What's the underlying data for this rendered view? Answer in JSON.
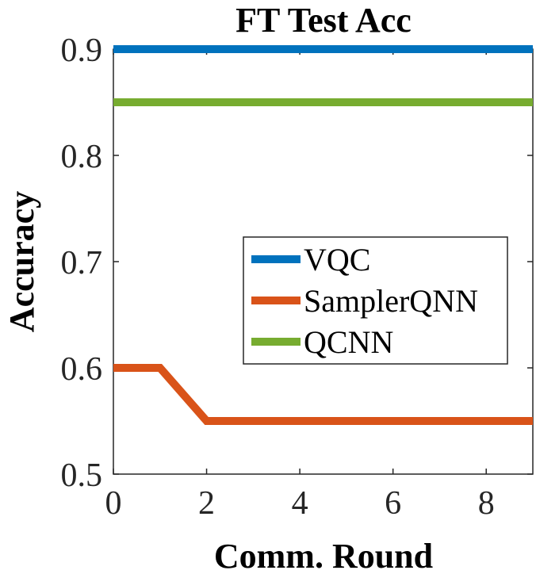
{
  "chart_data": {
    "type": "line",
    "title": "FT Test Acc",
    "xlabel": "Comm. Round",
    "ylabel": "Accuracy",
    "xlim": [
      0,
      9
    ],
    "ylim": [
      0.5,
      0.9
    ],
    "xticks": [
      0,
      2,
      4,
      6,
      8
    ],
    "xtick_labels": [
      "0",
      "2",
      "4",
      "6",
      "8"
    ],
    "yticks": [
      0.5,
      0.6,
      0.7,
      0.8,
      0.9
    ],
    "ytick_labels": [
      "0.5",
      "0.6",
      "0.7",
      "0.8",
      "0.9"
    ],
    "x": [
      0,
      1,
      2,
      3,
      4,
      5,
      6,
      7,
      8,
      9
    ],
    "series": [
      {
        "name": "VQC",
        "color": "#0072bd",
        "values": [
          0.9,
          0.9,
          0.9,
          0.9,
          0.9,
          0.9,
          0.9,
          0.9,
          0.9,
          0.9
        ]
      },
      {
        "name": "SamplerQNN",
        "color": "#d95319",
        "values": [
          0.6,
          0.6,
          0.55,
          0.55,
          0.55,
          0.55,
          0.55,
          0.55,
          0.55,
          0.55
        ]
      },
      {
        "name": "QCNN",
        "color": "#77ac30",
        "values": [
          0.85,
          0.85,
          0.85,
          0.85,
          0.85,
          0.85,
          0.85,
          0.85,
          0.85,
          0.85
        ]
      }
    ],
    "legend_position": "center-right",
    "grid": false
  }
}
